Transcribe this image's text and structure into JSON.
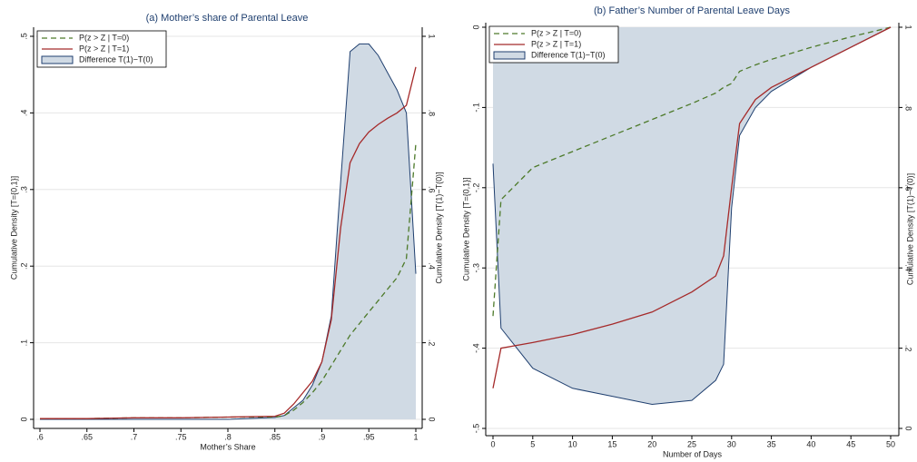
{
  "chart_data": [
    {
      "type": "line",
      "title": "(a) Mother’s share of Parental Leave",
      "x_label": "Mother’s Share",
      "y_label": "Cumulative Density [T={0,1}]",
      "y2_label": "Cumulative Density [T(1)−T(0)]",
      "x": [
        0.6,
        0.65,
        0.7,
        0.75,
        0.8,
        0.85,
        0.86,
        0.87,
        0.88,
        0.89,
        0.9,
        0.91,
        0.92,
        0.93,
        0.94,
        0.95,
        0.96,
        0.97,
        0.98,
        0.99,
        1
      ],
      "series": [
        {
          "name": "P(z > Z | T=0)",
          "color": "#4d7a2a",
          "dash": true,
          "values": [
            0.001,
            0.001,
            0.002,
            0.002,
            0.003,
            0.003,
            0.005,
            0.012,
            0.022,
            0.035,
            0.05,
            0.07,
            0.09,
            0.11,
            0.125,
            0.14,
            0.155,
            0.17,
            0.185,
            0.21,
            0.36
          ]
        },
        {
          "name": "P(z > Z | T=1)",
          "color": "#a52a2a",
          "values": [
            0.001,
            0.001,
            0.002,
            0.002,
            0.003,
            0.004,
            0.008,
            0.02,
            0.035,
            0.05,
            0.075,
            0.13,
            0.25,
            0.335,
            0.36,
            0.375,
            0.385,
            0.393,
            0.4,
            0.41,
            0.46
          ]
        },
        {
          "name": "Difference T(1)−T(0)",
          "color": "#d0dae4",
          "edge_color": "#1f3f6f",
          "fill": true,
          "fill_to": "bottom",
          "axis": "y2",
          "values": [
            0,
            0,
            0,
            0,
            0,
            0.005,
            0.01,
            0.03,
            0.05,
            0.09,
            0.15,
            0.27,
            0.62,
            0.96,
            0.98,
            0.98,
            0.95,
            0.905,
            0.86,
            0.8,
            0.38
          ]
        }
      ],
      "xlim": [
        0.6,
        1
      ],
      "xticks": [
        {
          "value": 0.6,
          "label": ".6"
        },
        {
          "value": 0.65,
          "label": ".65"
        },
        {
          "value": 0.7,
          "label": ".7"
        },
        {
          "value": 0.75,
          "label": ".75"
        },
        {
          "value": 0.8,
          "label": ".8"
        },
        {
          "value": 0.85,
          "label": ".85"
        },
        {
          "value": 0.9,
          "label": ".9"
        },
        {
          "value": 0.95,
          "label": ".95"
        },
        1
      ],
      "ylim": [
        0,
        0.5
      ],
      "yticks": [
        0,
        {
          "value": 0.1,
          "label": ".1"
        },
        {
          "value": 0.2,
          "label": ".2"
        },
        {
          "value": 0.3,
          "label": ".3"
        },
        {
          "value": 0.4,
          "label": ".4"
        },
        {
          "value": 0.5,
          "label": ".5"
        }
      ],
      "y2lim": [
        0,
        1
      ],
      "y2ticks": [
        0,
        {
          "value": 0.2,
          "label": ".2"
        },
        {
          "value": 0.4,
          "label": ".4"
        },
        {
          "value": 0.6,
          "label": ".6"
        },
        {
          "value": 0.8,
          "label": ".8"
        },
        1
      ],
      "grid": true,
      "legend": "top-left"
    },
    {
      "type": "line",
      "title": "(b) Father’s Number of Parental Leave Days",
      "x_label": "Number of Days",
      "y_label": "Cumulative Density [T={0,1}]",
      "y2_label": "Cumulative Density [T(1)−T(0)]",
      "x": [
        0,
        1,
        5,
        10,
        15,
        20,
        25,
        28,
        29,
        30,
        31,
        33,
        35,
        40,
        45,
        50
      ],
      "series": [
        {
          "name": "P(z > Z | T=0)",
          "color": "#4d7a2a",
          "dash": true,
          "values": [
            -0.36,
            -0.215,
            -0.175,
            -0.155,
            -0.135,
            -0.115,
            -0.095,
            -0.082,
            -0.075,
            -0.07,
            -0.055,
            -0.047,
            -0.04,
            -0.025,
            -0.012,
            0
          ]
        },
        {
          "name": "P(z > Z | T=1)",
          "color": "#a52a2a",
          "values": [
            -0.45,
            -0.4,
            -0.393,
            -0.383,
            -0.37,
            -0.355,
            -0.33,
            -0.31,
            -0.285,
            -0.2,
            -0.12,
            -0.09,
            -0.075,
            -0.05,
            -0.025,
            0
          ]
        },
        {
          "name": "Difference T(1)−T(0)",
          "color": "#d0dae4",
          "edge_color": "#1f3f6f",
          "fill": true,
          "fill_to": "top",
          "axis": "y2",
          "values": [
            0.66,
            0.25,
            0.15,
            0.1,
            0.08,
            0.06,
            0.07,
            0.12,
            0.16,
            0.55,
            0.73,
            0.8,
            0.84,
            0.9,
            0.95,
            1
          ]
        }
      ],
      "xlim": [
        0,
        50
      ],
      "xticks": [
        0,
        5,
        10,
        15,
        20,
        25,
        30,
        35,
        40,
        45,
        50
      ],
      "ylim": [
        -0.5,
        0
      ],
      "yticks": [
        {
          "value": -0.5,
          "label": "-.5"
        },
        {
          "value": -0.4,
          "label": "-.4"
        },
        {
          "value": -0.3,
          "label": "-.3"
        },
        {
          "value": -0.2,
          "label": "-.2"
        },
        {
          "value": -0.1,
          "label": "-.1"
        },
        0
      ],
      "y2lim": [
        0,
        1
      ],
      "y2ticks": [
        0,
        {
          "value": 0.2,
          "label": ".2"
        },
        {
          "value": 0.4,
          "label": ".4"
        },
        {
          "value": 0.6,
          "label": ".6"
        },
        {
          "value": 0.8,
          "label": ".8"
        },
        1
      ],
      "grid": true,
      "legend": "top-left"
    }
  ]
}
